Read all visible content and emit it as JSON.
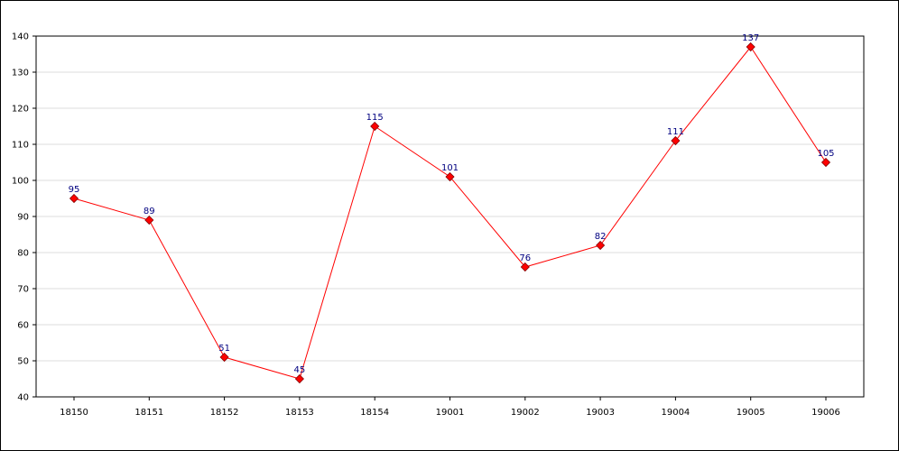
{
  "chart_data": {
    "type": "line",
    "categories": [
      "18150",
      "18151",
      "18152",
      "18153",
      "18154",
      "19001",
      "19002",
      "19003",
      "19004",
      "19005",
      "19006"
    ],
    "series": [
      {
        "values": [
          95,
          89,
          51,
          45,
          115,
          101,
          76,
          82,
          111,
          137,
          105
        ]
      }
    ],
    "ylim": [
      40,
      140
    ],
    "yticks": [
      40,
      50,
      60,
      70,
      80,
      90,
      100,
      110,
      120,
      130,
      140
    ],
    "grid": true,
    "legend": "none",
    "line_color": "#ff0000",
    "marker_color": "#ff0000",
    "label_color": "#000080",
    "grid_color": "#dddddd"
  }
}
